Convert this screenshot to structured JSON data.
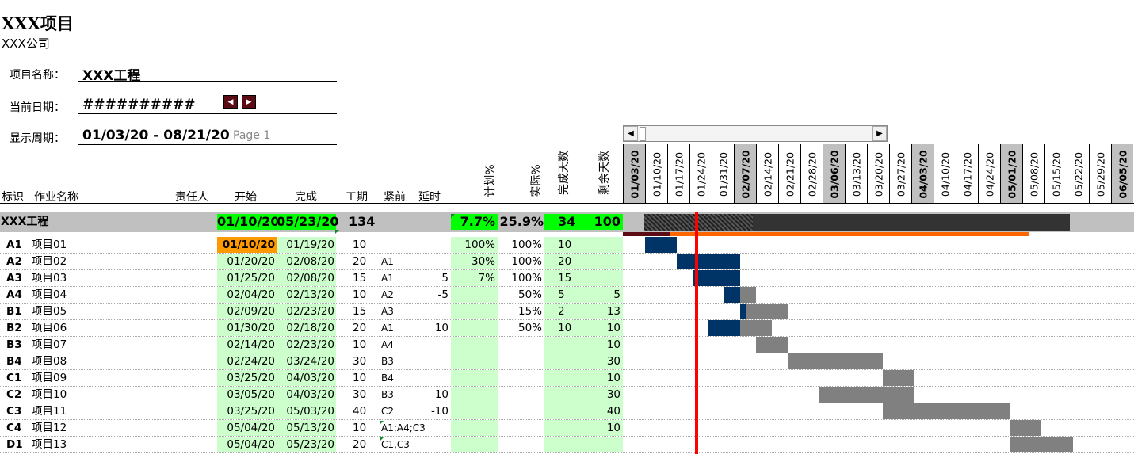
{
  "header": {
    "title": "XXX项目",
    "company": "XXX公司",
    "project_label": "项目名称：",
    "project_name": "XXX工程",
    "date_label": "当前日期：",
    "date_value": "##########",
    "period_label": "显示周期：",
    "period_value": "01/03/20 - 08/21/20",
    "page": "Page 1"
  },
  "nav": {
    "prev_icon": "◀",
    "next_icon": "▶"
  },
  "scrollbar": {
    "left_icon": "◀",
    "right_icon": "▶"
  },
  "columns": {
    "id": "标识",
    "name": "作业名称",
    "owner": "责任人",
    "start": "开始",
    "finish": "完成",
    "duration": "工期",
    "pred": "紧前",
    "delay": "延时",
    "plan_pct": "计划%",
    "actual_pct": "实际%",
    "done_days": "完成天数",
    "remain_days": "剩余天数"
  },
  "timeline": {
    "dates": [
      "01/03/20",
      "01/10/20",
      "01/17/20",
      "01/24/20",
      "01/31/20",
      "02/07/20",
      "02/14/20",
      "02/21/20",
      "02/28/20",
      "03/06/20",
      "03/13/20",
      "03/20/20",
      "03/27/20",
      "04/03/20",
      "04/10/20",
      "04/17/20",
      "04/24/20",
      "05/01/20",
      "05/08/20",
      "05/15/20",
      "05/22/20",
      "05/29/20",
      "06/05/20"
    ],
    "highlighted": [
      "01/03/20",
      "02/07/20",
      "03/06/20",
      "04/03/20",
      "05/01/20",
      "06/05/20"
    ],
    "today_date": "01/26/20"
  },
  "summary": {
    "name": "XXX工程",
    "start": "01/10/20",
    "finish": "05/23/20",
    "duration": "134",
    "plan_pct": "7.7%",
    "actual_pct": "25.9%",
    "done_days": "34",
    "remain_days": "100"
  },
  "tasks": [
    {
      "id": "A1",
      "name": "项目01",
      "start": "01/10/20",
      "finish": "01/19/20",
      "duration": "10",
      "pred": "",
      "delay": "",
      "plan": "100%",
      "actual": "100%",
      "done": "10",
      "remain": ""
    },
    {
      "id": "A2",
      "name": "项目02",
      "start": "01/20/20",
      "finish": "02/08/20",
      "duration": "20",
      "pred": "A1",
      "delay": "",
      "plan": "30%",
      "actual": "100%",
      "done": "20",
      "remain": ""
    },
    {
      "id": "A3",
      "name": "项目03",
      "start": "01/25/20",
      "finish": "02/08/20",
      "duration": "15",
      "pred": "A1",
      "delay": "5",
      "plan": "7%",
      "actual": "100%",
      "done": "15",
      "remain": ""
    },
    {
      "id": "A4",
      "name": "项目04",
      "start": "02/04/20",
      "finish": "02/13/20",
      "duration": "10",
      "pred": "A2",
      "delay": "-5",
      "plan": "",
      "actual": "50%",
      "done": "5",
      "remain": "5"
    },
    {
      "id": "B1",
      "name": "项目05",
      "start": "02/09/20",
      "finish": "02/23/20",
      "duration": "15",
      "pred": "A3",
      "delay": "",
      "plan": "",
      "actual": "15%",
      "done": "2",
      "remain": "13"
    },
    {
      "id": "B2",
      "name": "项目06",
      "start": "01/30/20",
      "finish": "02/18/20",
      "duration": "20",
      "pred": "A1",
      "delay": "10",
      "plan": "",
      "actual": "50%",
      "done": "10",
      "remain": "10"
    },
    {
      "id": "B3",
      "name": "项目07",
      "start": "02/14/20",
      "finish": "02/23/20",
      "duration": "10",
      "pred": "A4",
      "delay": "",
      "plan": "",
      "actual": "",
      "done": "",
      "remain": "10"
    },
    {
      "id": "B4",
      "name": "项目08",
      "start": "02/24/20",
      "finish": "03/24/20",
      "duration": "30",
      "pred": "B3",
      "delay": "",
      "plan": "",
      "actual": "",
      "done": "",
      "remain": "30"
    },
    {
      "id": "C1",
      "name": "项目09",
      "start": "03/25/20",
      "finish": "04/03/20",
      "duration": "10",
      "pred": "B4",
      "delay": "",
      "plan": "",
      "actual": "",
      "done": "",
      "remain": "10"
    },
    {
      "id": "C2",
      "name": "项目10",
      "start": "03/05/20",
      "finish": "04/03/20",
      "duration": "30",
      "pred": "B3",
      "delay": "10",
      "plan": "",
      "actual": "",
      "done": "",
      "remain": "30"
    },
    {
      "id": "C3",
      "name": "项目11",
      "start": "03/25/20",
      "finish": "05/03/20",
      "duration": "40",
      "pred": "C2",
      "delay": "-10",
      "plan": "",
      "actual": "",
      "done": "",
      "remain": "40"
    },
    {
      "id": "C4",
      "name": "项目12",
      "start": "05/04/20",
      "finish": "05/13/20",
      "duration": "10",
      "pred": "A1;A4;C3",
      "delay": "",
      "plan": "",
      "actual": "",
      "done": "",
      "remain": "10"
    },
    {
      "id": "D1",
      "name": "项目13",
      "start": "05/04/20",
      "finish": "05/23/20",
      "duration": "20",
      "pred": "C1,C3",
      "delay": "",
      "plan": "",
      "actual": "",
      "done": "",
      "remain": ""
    }
  ],
  "colors": {
    "done_bar": "#003366",
    "remain_bar": "#808080",
    "today_line": "#ff0000",
    "plan_line": "#ff6600"
  }
}
